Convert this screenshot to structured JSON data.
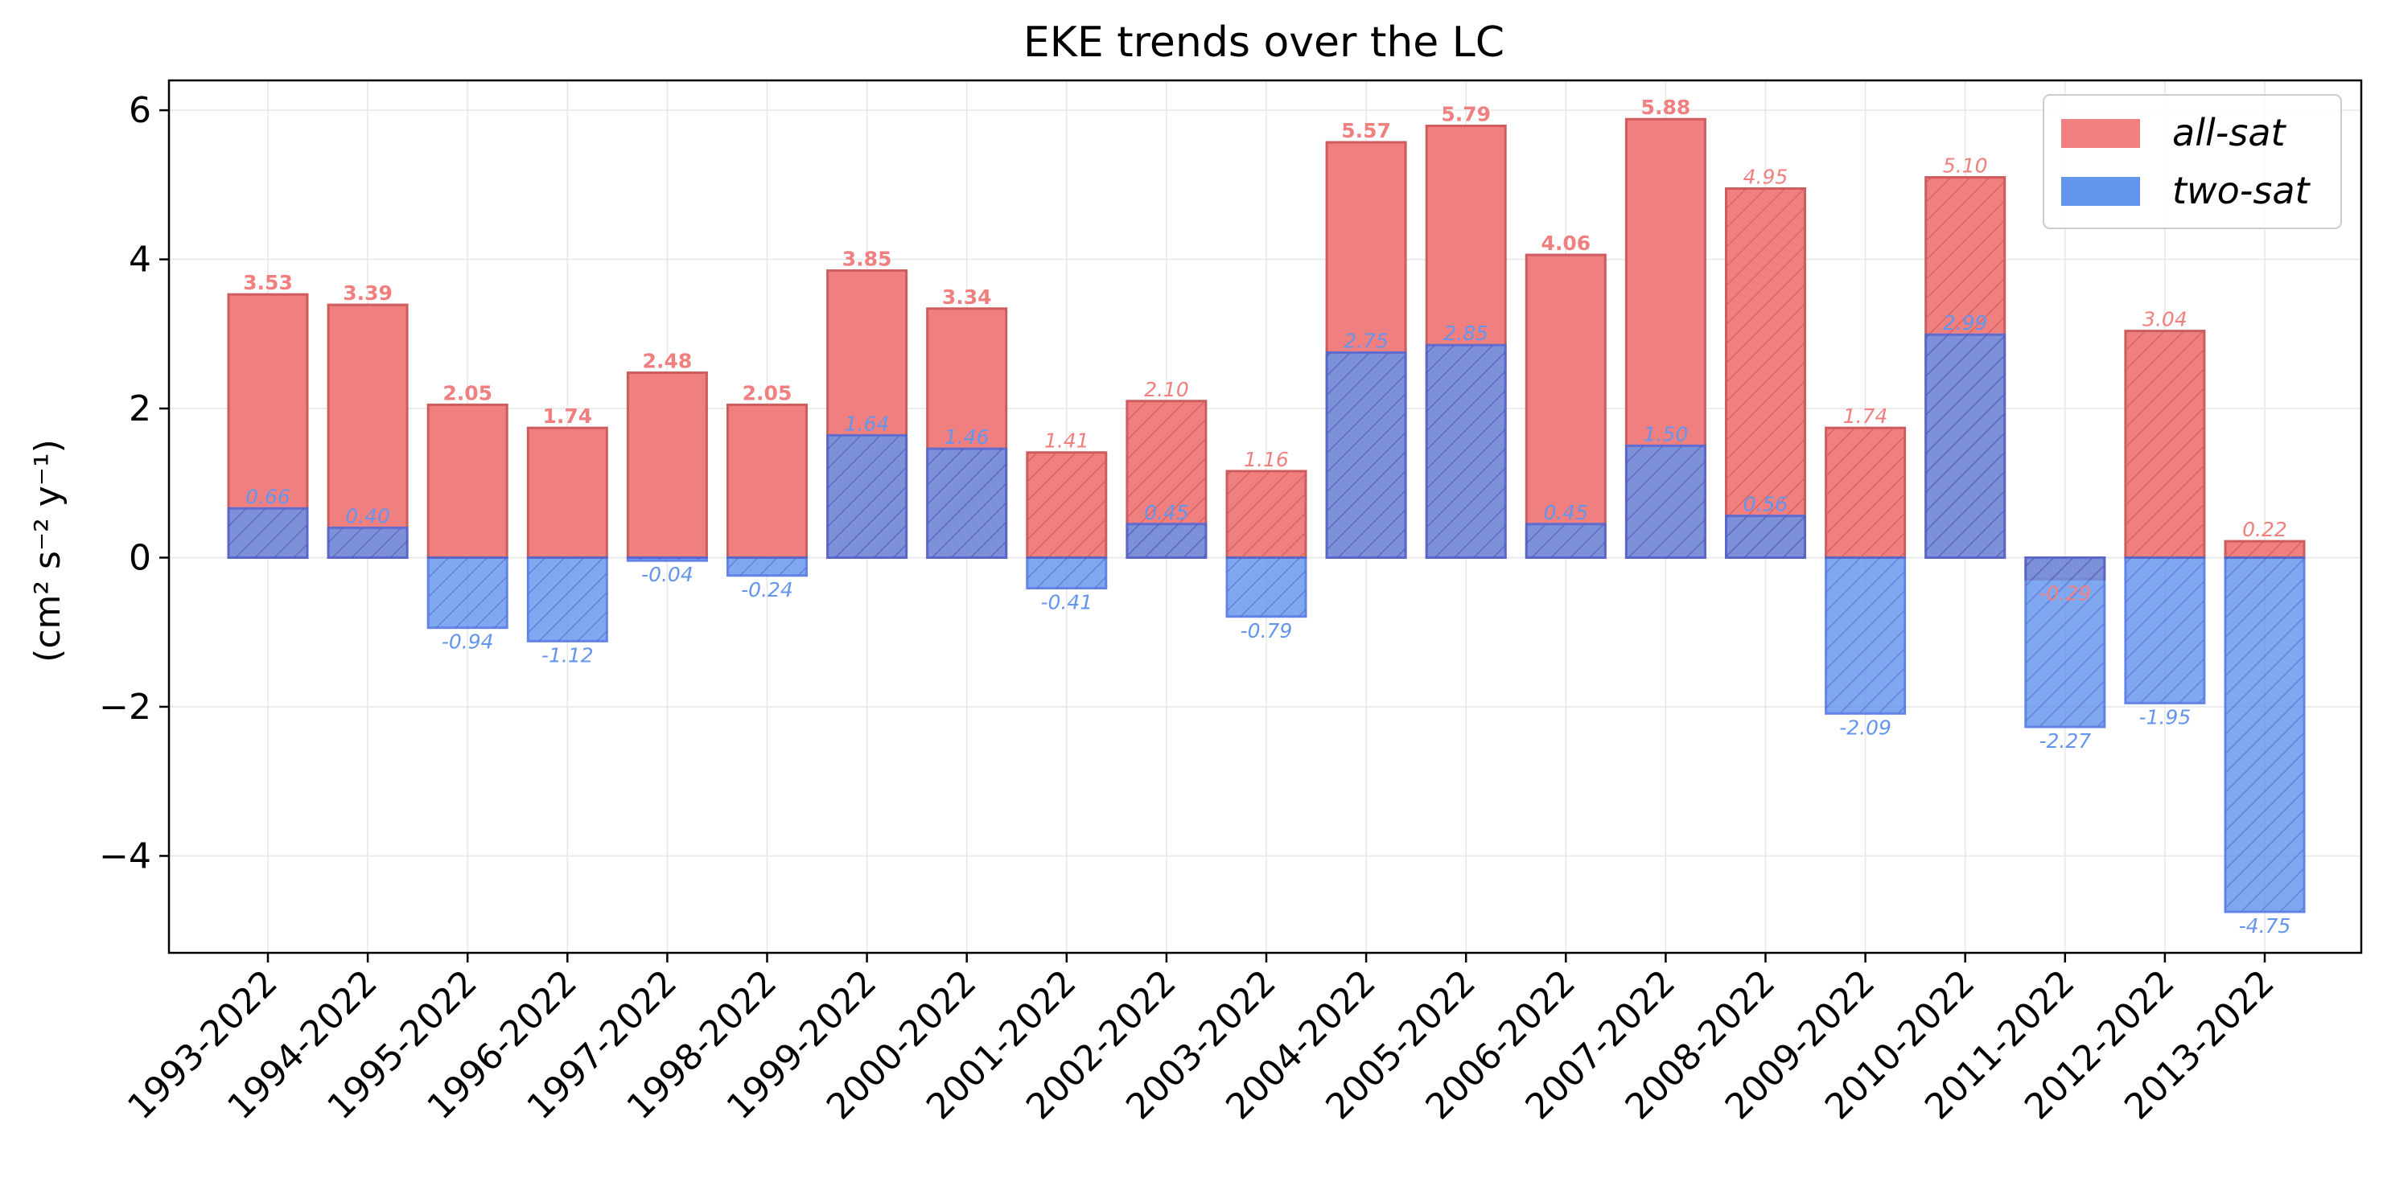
{
  "chart_data": {
    "type": "bar",
    "title": "EKE trends over the LC",
    "ylabel": "(cm² s⁻² y⁻¹)",
    "xlabel": "",
    "ylim": [
      -5.3,
      6.4
    ],
    "yticks": [
      -4,
      -2,
      0,
      2,
      4,
      6
    ],
    "ytick_labels": [
      "−4",
      "−2",
      "0",
      "2",
      "4",
      "6"
    ],
    "grid": true,
    "legend_position": "top-right",
    "categories": [
      "1993-2022",
      "1994-2022",
      "1995-2022",
      "1996-2022",
      "1997-2022",
      "1998-2022",
      "1999-2022",
      "2000-2022",
      "2001-2022",
      "2002-2022",
      "2003-2022",
      "2004-2022",
      "2005-2022",
      "2006-2022",
      "2007-2022",
      "2008-2022",
      "2009-2022",
      "2010-2022",
      "2011-2022",
      "2012-2022",
      "2013-2022"
    ],
    "series": [
      {
        "name": "all-sat",
        "color": "#f08080",
        "edge_color": "#cd5c5c",
        "values": [
          3.53,
          3.39,
          2.05,
          1.74,
          2.48,
          2.05,
          3.85,
          3.34,
          1.41,
          2.1,
          1.16,
          5.57,
          5.79,
          4.06,
          5.88,
          4.95,
          1.74,
          5.1,
          -0.29,
          3.04,
          0.22
        ],
        "labels": [
          "3.53",
          "3.39",
          "2.05",
          "1.74",
          "2.48",
          "2.05",
          "3.85",
          "3.34",
          "1.41",
          "2.10",
          "1.16",
          "5.57",
          "5.79",
          "4.06",
          "5.88",
          "4.95",
          "1.74",
          "5.10",
          "-0.29",
          "3.04",
          "0.22"
        ],
        "significant": [
          true,
          true,
          true,
          true,
          true,
          true,
          true,
          true,
          false,
          false,
          false,
          true,
          true,
          true,
          true,
          false,
          false,
          false,
          false,
          false,
          false
        ]
      },
      {
        "name": "two-sat",
        "color": "#6495ed",
        "edge_color": "#4169e1",
        "values": [
          0.66,
          0.4,
          -0.94,
          -1.12,
          -0.04,
          -0.24,
          1.64,
          1.46,
          -0.41,
          0.45,
          -0.79,
          2.75,
          2.85,
          0.45,
          1.5,
          0.56,
          -2.09,
          2.99,
          -2.27,
          -1.95,
          -4.75
        ],
        "labels": [
          "0.66",
          "0.40",
          "-0.94",
          "-1.12",
          "-0.04",
          "-0.24",
          "1.64",
          "1.46",
          "-0.41",
          "0.45",
          "-0.79",
          "2.75",
          "2.85",
          "0.45",
          "1.50",
          "0.56",
          "-2.09",
          "2.99",
          "-2.27",
          "-1.95",
          "-4.75"
        ],
        "significant": [
          false,
          false,
          false,
          false,
          false,
          false,
          false,
          false,
          false,
          false,
          false,
          false,
          false,
          false,
          false,
          false,
          false,
          false,
          false,
          false,
          false
        ]
      }
    ]
  }
}
